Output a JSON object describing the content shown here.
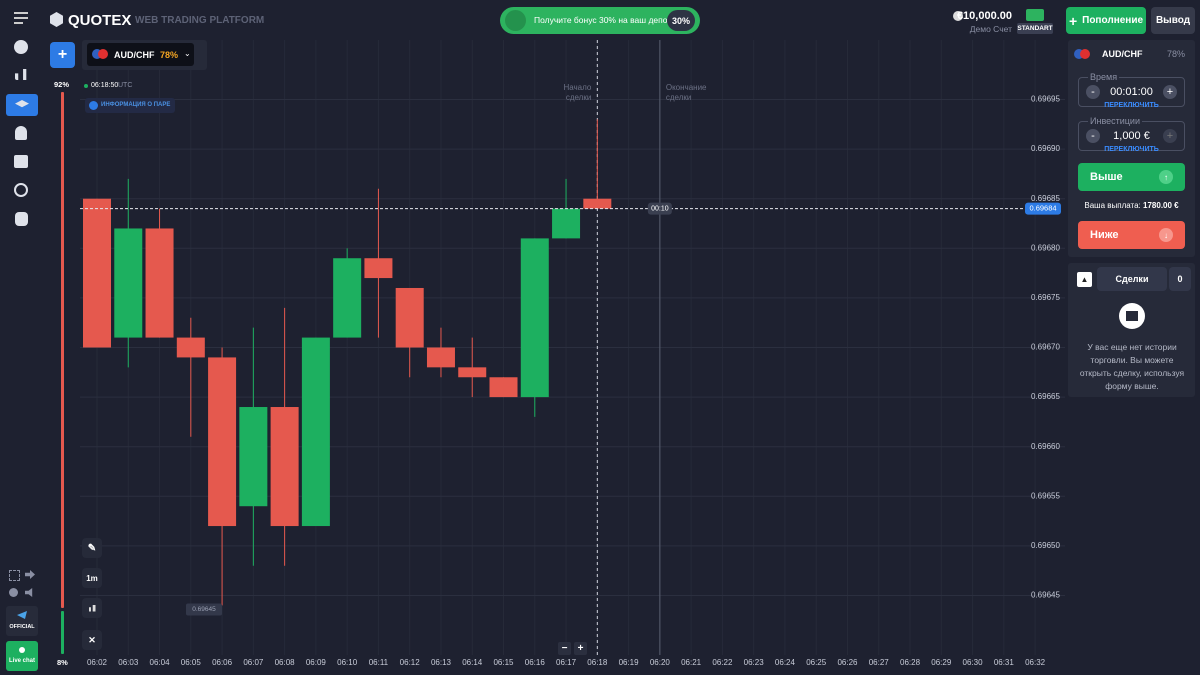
{
  "header": {
    "logo": "QUOTEX",
    "tagline": "WEB TRADING PLATFORM",
    "bonus": "Получите бонус 30% на ваш депозит",
    "bonus_badge": "30%",
    "balance": "€10,000.00",
    "account": "Демо Счет",
    "account_type": "STANDART",
    "deposit": "Пополнение",
    "withdraw": "Вывод"
  },
  "sidebar": {
    "official": "OFFICIAL",
    "live_chat": "Live chat"
  },
  "asset_tab": {
    "asset": "AUD/CHF",
    "payout": "78%",
    "time": "06:18:50",
    "timezone": "UTC",
    "info": "ИНФОРМАЦИЯ О ПАРЕ",
    "interval": "1m"
  },
  "sentiment": {
    "up": {
      "value": 92,
      "label": "92%"
    },
    "down": {
      "value": 8,
      "label": "8%"
    },
    "up_color": "#e5594e",
    "down_color": "#1db060"
  },
  "chart_data": {
    "type": "candlestick",
    "x": [
      "06:02",
      "06:03",
      "06:04",
      "06:05",
      "06:06",
      "06:07",
      "06:08",
      "06:09",
      "06:10",
      "06:11",
      "06:12",
      "06:13",
      "06:14",
      "06:15",
      "06:16",
      "06:17",
      "06:18",
      "06:19",
      "06:20",
      "06:21",
      "06:22",
      "06:23",
      "06:24",
      "06:25",
      "06:26",
      "06:27",
      "06:28",
      "06:29",
      "06:30",
      "06:31",
      "06:32"
    ],
    "open": [
      0.69685,
      0.69671,
      0.69682,
      0.69671,
      0.69669,
      0.69654,
      0.69664,
      0.69652,
      0.69671,
      0.69679,
      0.69676,
      0.6967,
      0.69668,
      0.69667,
      0.69665,
      0.69681,
      0.69685,
      null,
      null,
      null,
      null,
      null,
      null,
      null,
      null,
      null,
      null,
      null,
      null,
      null,
      null
    ],
    "close": [
      0.6967,
      0.69682,
      0.69671,
      0.69669,
      0.69652,
      0.69664,
      0.69652,
      0.69671,
      0.69679,
      0.69677,
      0.6967,
      0.69668,
      0.69667,
      0.69665,
      0.69681,
      0.69684,
      0.69684,
      null,
      null,
      null,
      null,
      null,
      null,
      null,
      null,
      null,
      null,
      null,
      null,
      null,
      null
    ],
    "high": [
      0.69685,
      0.69687,
      0.69684,
      0.69673,
      0.6967,
      0.69672,
      0.69674,
      0.69671,
      0.6968,
      0.69686,
      0.69676,
      0.69672,
      0.69671,
      0.69667,
      0.69681,
      0.69687,
      0.69693,
      null,
      null,
      null,
      null,
      null,
      null,
      null,
      null,
      null,
      null,
      null,
      null,
      null,
      null
    ],
    "low": [
      0.6967,
      0.69668,
      0.69671,
      0.69661,
      0.69644,
      0.69648,
      0.69648,
      0.69652,
      0.69671,
      0.69671,
      0.69667,
      0.69667,
      0.69665,
      0.69665,
      0.69663,
      0.69681,
      0.69684,
      null,
      null,
      null,
      null,
      null,
      null,
      null,
      null,
      null,
      null,
      null,
      null,
      null,
      null
    ],
    "up_color": "#1db060",
    "down_color": "#e5594e",
    "ylim": [
      0.69639,
      0.69701
    ],
    "yticks": [
      {
        "value": 0.69645,
        "label": "0.69645"
      },
      {
        "value": 0.6965,
        "label": "0.69650"
      },
      {
        "value": 0.69655,
        "label": "0.69655"
      },
      {
        "value": 0.6966,
        "label": "0.69660"
      },
      {
        "value": 0.69665,
        "label": "0.69665"
      },
      {
        "value": 0.6967,
        "label": "0.69670"
      },
      {
        "value": 0.69675,
        "label": "0.69675"
      },
      {
        "value": 0.6968,
        "label": "0.69680"
      },
      {
        "value": 0.69685,
        "label": "0.69685"
      },
      {
        "value": 0.6969,
        "label": "0.69690"
      },
      {
        "value": 0.69695,
        "label": "0.69695"
      }
    ],
    "grid": true,
    "current_price": 0.69684,
    "low_marker": 0.69645,
    "timer": "00:10",
    "trade_start_label": "Начало сделки",
    "trade_end_label": "Окончание сделки"
  },
  "trade_panel": {
    "asset": "AUD/CHF",
    "payout": "78%",
    "time_label": "Время",
    "time": "00:01:00",
    "switch_time": "ПЕРЕКЛЮЧИТЬ",
    "investment_label": "Инвестиции",
    "investment": "1,000 €",
    "switch_investment": "ПЕРЕКЛЮЧИТЬ",
    "up": "Выше",
    "payout_label": "Ваша выплата:",
    "payout_amount": "1780.00 €",
    "down": "Ниже"
  },
  "trades_panel": {
    "title": "Сделки",
    "count": "0",
    "empty": "У вас еще нет истории торговли. Вы можете открыть сделку, используя форму выше."
  }
}
